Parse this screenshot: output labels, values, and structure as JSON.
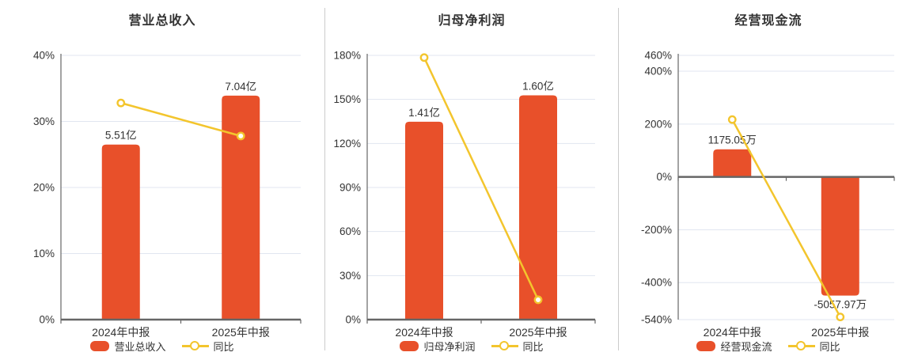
{
  "colors": {
    "bar": "#E8502A",
    "line": "#F3C52D",
    "marker_fill": "#FFFFFF",
    "grid": "#E1E6F0",
    "axis": "#666666",
    "divider": "#CCCCCC",
    "text": "#333333"
  },
  "chart_data": [
    {
      "type": "bar",
      "title": "营业总收入",
      "categories": [
        "2024年中报",
        "2025年中报"
      ],
      "series": [
        {
          "name": "营业总收入",
          "type": "bar",
          "unit": "亿",
          "values": [
            5.51,
            7.04
          ],
          "value_labels": [
            "5.51亿",
            "7.04亿"
          ],
          "display_axis_values": [
            26.5,
            33.9
          ]
        },
        {
          "name": "同比",
          "type": "line",
          "unit": "%",
          "values": [
            32.8,
            27.8
          ]
        }
      ],
      "yaxis": {
        "min": 0,
        "max": 40,
        "ticks": [
          "40%",
          "30%",
          "20%",
          "10%",
          "0%"
        ],
        "tick_values": [
          40,
          30,
          20,
          10,
          0
        ]
      },
      "legend": [
        "营业总收入",
        "同比"
      ],
      "legend_position": "bottom",
      "grid": true
    },
    {
      "type": "bar",
      "title": "归母净利润",
      "categories": [
        "2024年中报",
        "2025年中报"
      ],
      "series": [
        {
          "name": "归母净利润",
          "type": "bar",
          "unit": "亿",
          "values": [
            1.41,
            1.6
          ],
          "value_labels": [
            "1.41亿",
            "1.60亿"
          ],
          "display_axis_values": [
            134.8,
            152.8
          ]
        },
        {
          "name": "同比",
          "type": "line",
          "unit": "%",
          "values": [
            178.5,
            13.5
          ]
        }
      ],
      "yaxis": {
        "min": 0,
        "max": 180,
        "ticks": [
          "180%",
          "150%",
          "120%",
          "90%",
          "60%",
          "30%",
          "0%"
        ],
        "tick_values": [
          180,
          150,
          120,
          90,
          60,
          30,
          0
        ]
      },
      "legend": [
        "归母净利润",
        "同比"
      ],
      "legend_position": "bottom",
      "grid": true
    },
    {
      "type": "bar",
      "title": "经营现金流",
      "categories": [
        "2024年中报",
        "2025年中报"
      ],
      "series": [
        {
          "name": "经营现金流",
          "type": "bar",
          "unit": "万",
          "values": [
            1175.05,
            -5057.97
          ],
          "value_labels": [
            "1175.05万",
            "-5057.97万"
          ],
          "display_axis_values": [
            104.5,
            -449
          ]
        },
        {
          "name": "同比",
          "type": "line",
          "unit": "%",
          "values": [
            217,
            -530
          ]
        }
      ],
      "yaxis": {
        "min": -540,
        "max": 460,
        "ticks": [
          "460%",
          "400%",
          "200%",
          "0%",
          "-200%",
          "-400%",
          "-540%"
        ],
        "tick_values": [
          460,
          400,
          200,
          0,
          -200,
          -400,
          -540
        ]
      },
      "legend": [
        "经营现金流",
        "同比"
      ],
      "legend_position": "bottom",
      "grid": true
    }
  ]
}
